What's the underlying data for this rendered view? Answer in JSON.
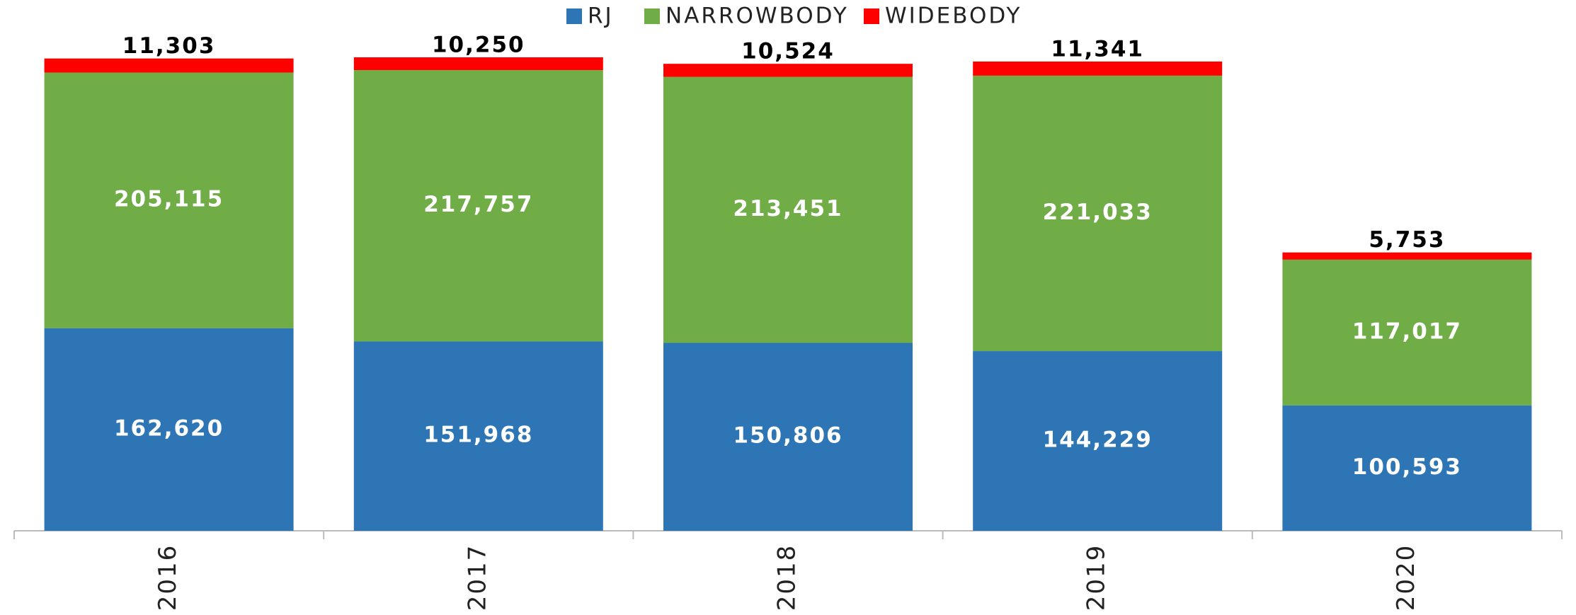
{
  "chart_data": {
    "type": "stacked_bar",
    "categories": [
      "2016",
      "2017",
      "2018",
      "2019",
      "2020"
    ],
    "series": [
      {
        "name": "RJ",
        "color": "#2e75b6",
        "values": [
          162620,
          151968,
          150806,
          144229,
          100593
        ],
        "value_labels": [
          "162,620",
          "151,968",
          "150,806",
          "144,229",
          "100,593"
        ]
      },
      {
        "name": "NARROWBODY",
        "color": "#70ad47",
        "values": [
          205115,
          217757,
          213451,
          221033,
          117017
        ],
        "value_labels": [
          "205,115",
          "217,757",
          "213,451",
          "221,033",
          "117,017"
        ]
      },
      {
        "name": "WIDEBODY",
        "color": "#ff0000",
        "values": [
          11303,
          10250,
          10524,
          11341,
          5753
        ],
        "value_labels": [
          "11,303",
          "10,250",
          "10,524",
          "11,341",
          "5,753"
        ]
      }
    ],
    "legend": "top"
  }
}
